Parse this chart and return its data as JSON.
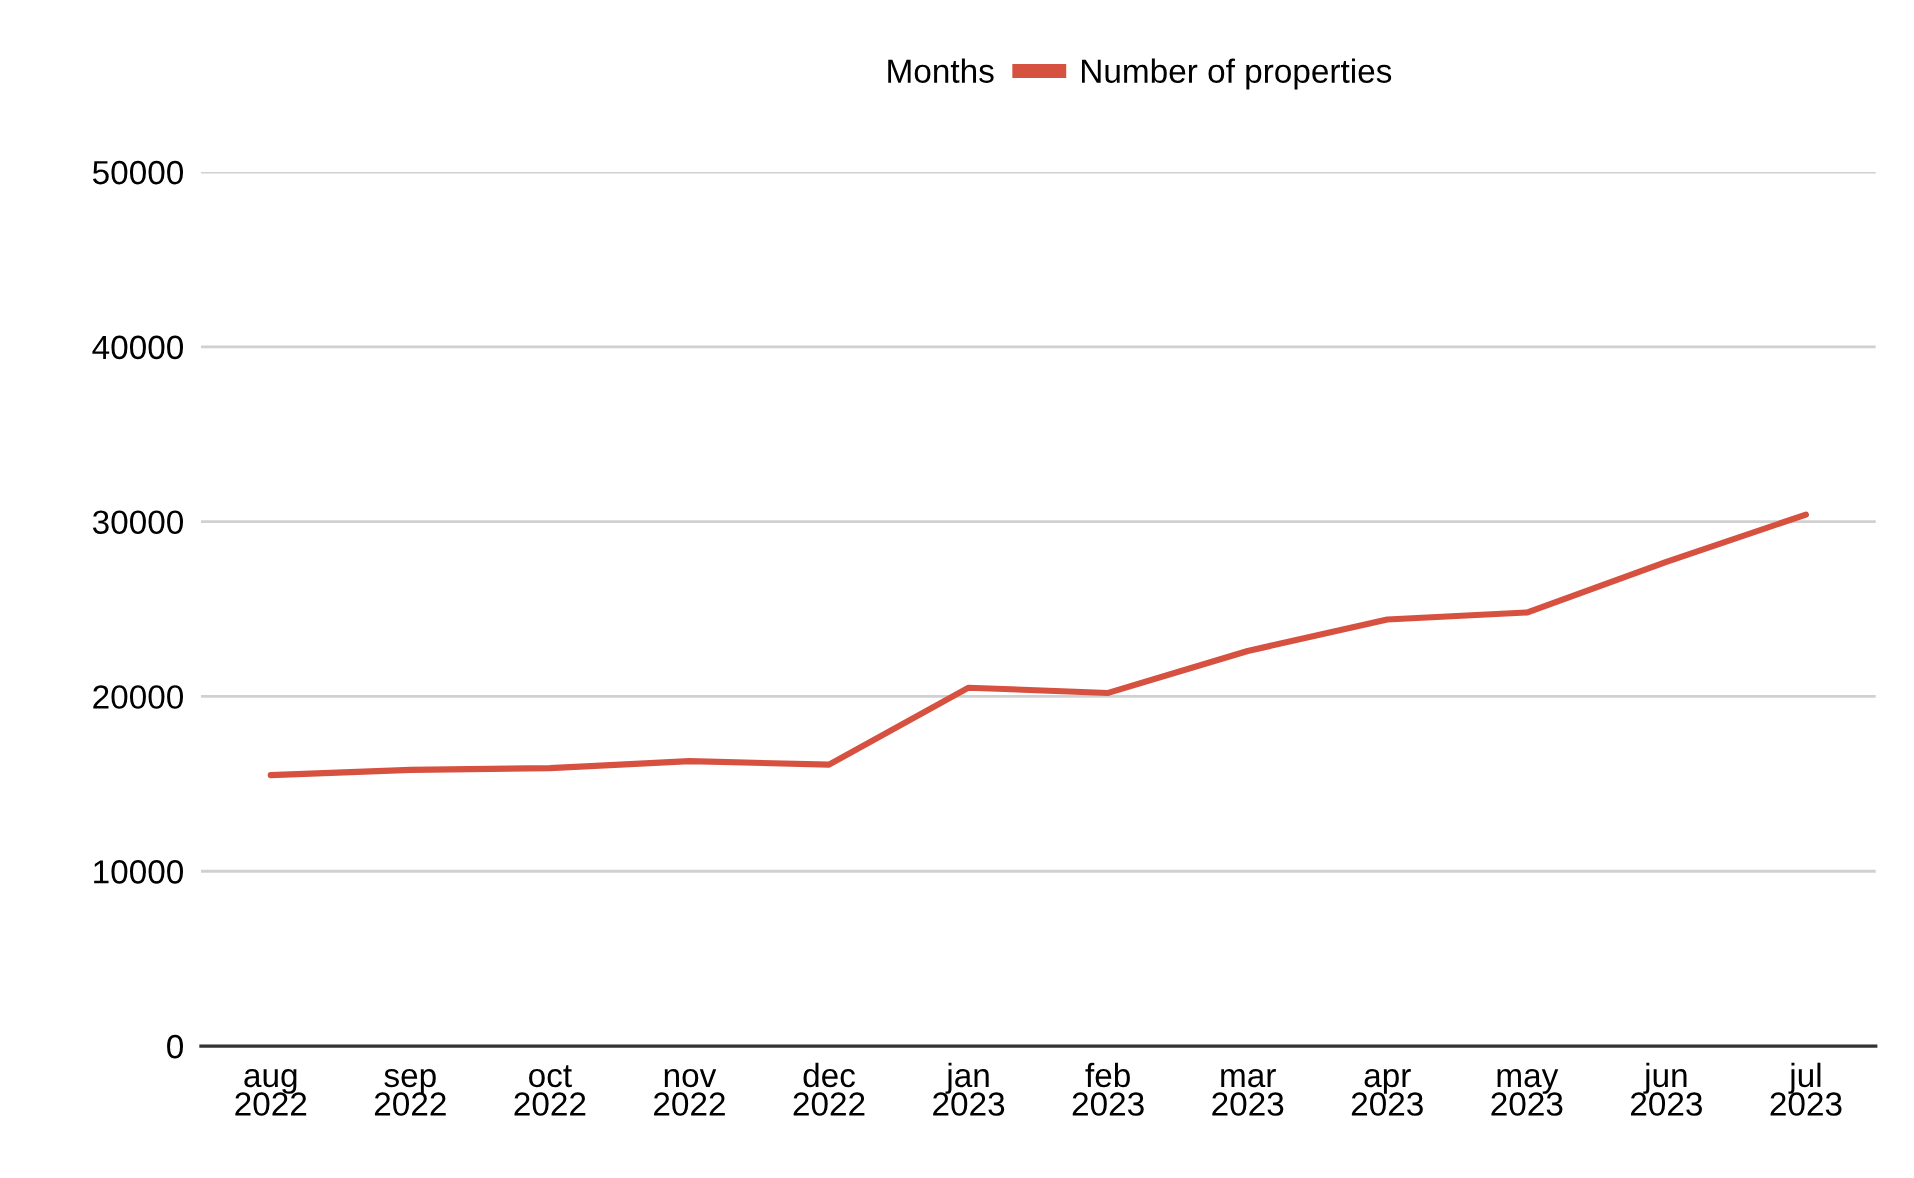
{
  "chart_data": {
    "type": "line",
    "legend_title": "Months",
    "categories": [
      "aug\n2022",
      "sep\n2022",
      "oct\n2022",
      "nov\n2022",
      "dec\n2022",
      "jan\n2023",
      "feb\n2023",
      "mar\n2023",
      "apr\n2023",
      "may\n2023",
      "jun\n2023",
      "jul\n2023"
    ],
    "series": [
      {
        "name": "Number of properties",
        "color": "#d65140",
        "values": [
          15500,
          15800,
          15900,
          16300,
          16100,
          20500,
          20200,
          22600,
          24400,
          24800,
          27700,
          30400
        ]
      }
    ],
    "ylim": [
      0,
      50000
    ],
    "yticks": [
      0,
      10000,
      20000,
      30000,
      40000,
      50000
    ],
    "grid": "y",
    "legend": "top",
    "marker": "none",
    "line_style": "solid"
  }
}
